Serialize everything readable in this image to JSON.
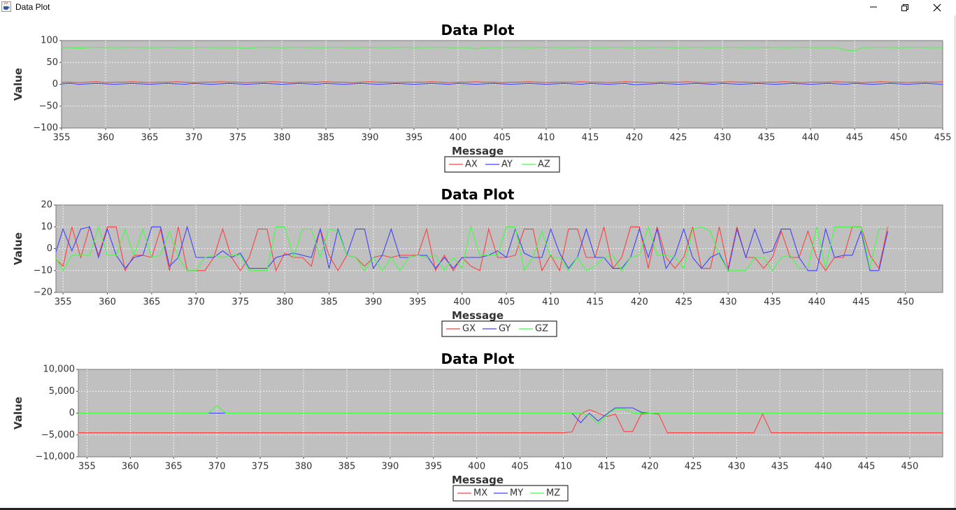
{
  "window": {
    "title": "Data Plot",
    "icon": "java-cup-icon",
    "controls": [
      "minimize-icon",
      "restore-icon",
      "close-icon"
    ]
  },
  "chart_data": [
    {
      "type": "line",
      "title": "Data Plot",
      "xlabel": "Message",
      "ylabel": "Value",
      "xlim": [
        355,
        455
      ],
      "ylim": [
        -100,
        100
      ],
      "yticks": [
        100,
        50,
        0,
        -50,
        -100
      ],
      "ytick_labels": [
        "100",
        "50",
        "0",
        "−50",
        "−100"
      ],
      "xticks": [
        355,
        360,
        365,
        370,
        375,
        380,
        385,
        390,
        395,
        400,
        405,
        410,
        415,
        420,
        425,
        430,
        435,
        440,
        445,
        450,
        455
      ],
      "grid": true,
      "plot_background": "#c0c0c0",
      "legend_position": "bottom-center",
      "series": [
        {
          "name": "AX",
          "color": "#ff4040",
          "x_start": 355,
          "x_step": 1,
          "values": [
            5,
            5,
            4,
            5,
            6,
            4,
            5,
            5,
            6,
            5,
            4,
            5,
            5,
            6,
            5,
            4,
            5,
            5,
            6,
            5,
            5,
            4,
            5,
            5,
            6,
            5,
            4,
            5,
            5,
            5,
            6,
            5,
            5,
            4,
            5,
            6,
            5,
            5,
            4,
            5,
            5,
            5,
            6,
            5,
            4,
            5,
            5,
            6,
            5,
            5,
            4,
            5,
            5,
            6,
            5,
            4,
            5,
            5,
            5,
            6,
            5,
            5,
            4,
            5,
            6,
            5,
            5,
            4,
            5,
            5,
            5,
            6,
            5,
            4,
            5,
            5,
            6,
            5,
            5,
            4,
            5,
            5,
            6,
            5,
            4,
            5,
            5,
            5,
            6,
            5,
            5,
            4,
            5,
            6,
            5,
            5,
            4,
            5,
            5,
            5,
            6
          ]
        },
        {
          "name": "AY",
          "color": "#4040ff",
          "x_start": 355,
          "x_step": 1,
          "values": [
            1,
            2,
            0,
            1,
            2,
            1,
            0,
            1,
            2,
            1,
            0,
            1,
            2,
            1,
            0,
            2,
            1,
            0,
            1,
            2,
            1,
            0,
            1,
            2,
            1,
            0,
            1,
            2,
            1,
            0,
            2,
            1,
            0,
            1,
            2,
            1,
            0,
            1,
            2,
            1,
            0,
            1,
            2,
            1,
            0,
            2,
            1,
            0,
            1,
            2,
            1,
            0,
            1,
            2,
            1,
            0,
            1,
            2,
            1,
            0,
            2,
            1,
            0,
            1,
            2,
            -1,
            0,
            1,
            2,
            1,
            0,
            1,
            2,
            1,
            0,
            2,
            1,
            0,
            1,
            2,
            1,
            0,
            1,
            2,
            1,
            0,
            1,
            2,
            1,
            0,
            2,
            1,
            0,
            1,
            2,
            1,
            0,
            1,
            2,
            1,
            0
          ]
        },
        {
          "name": "AZ",
          "color": "#40ff40",
          "x_start": 355,
          "x_step": 1,
          "values": [
            84,
            84,
            83,
            84,
            85,
            84,
            84,
            84,
            85,
            84,
            84,
            84,
            85,
            84,
            84,
            84,
            85,
            84,
            84,
            84,
            84,
            82,
            84,
            85,
            84,
            84,
            84,
            85,
            84,
            84,
            84,
            85,
            84,
            84,
            84,
            85,
            84,
            84,
            84,
            85,
            84,
            84,
            84,
            85,
            84,
            84,
            84,
            81,
            84,
            84,
            84,
            85,
            84,
            84,
            84,
            85,
            84,
            84,
            84,
            85,
            84,
            84,
            84,
            85,
            84,
            84,
            84,
            84,
            85,
            84,
            84,
            84,
            85,
            84,
            84,
            84,
            85,
            84,
            84,
            84,
            85,
            84,
            84,
            84,
            85,
            84,
            84,
            84,
            84,
            78,
            77,
            84,
            84,
            85,
            84,
            84,
            84,
            85,
            84,
            84,
            84
          ]
        }
      ]
    },
    {
      "type": "line",
      "title": "Data Plot",
      "xlabel": "Message",
      "ylabel": "Value",
      "xlim": [
        354.2,
        454.2
      ],
      "ylim": [
        -20,
        20
      ],
      "yticks": [
        20,
        10,
        0,
        -10,
        -20
      ],
      "ytick_labels": [
        "20",
        "10",
        "0",
        "−10",
        "−20"
      ],
      "xticks": [
        355,
        360,
        365,
        370,
        375,
        380,
        385,
        390,
        395,
        400,
        405,
        410,
        415,
        420,
        425,
        430,
        435,
        440,
        445,
        450
      ],
      "grid": true,
      "plot_background": "#c0c0c0",
      "legend_position": "bottom-center",
      "series": [
        {
          "name": "GX",
          "color": "#ff4040",
          "x_start": 354,
          "x_step": 1,
          "values": [
            -4,
            -8,
            10,
            -4,
            10,
            -3,
            10,
            10,
            -10,
            -3,
            -3,
            -4,
            9,
            -10,
            10,
            -10,
            -10,
            -10,
            -4,
            9,
            -4,
            -10,
            -4,
            9,
            9,
            -10,
            -2,
            -4,
            -4,
            -8,
            9,
            -3,
            -10,
            -3,
            -4,
            -8,
            -4,
            -3,
            -4,
            -3,
            -3,
            -3,
            9,
            -10,
            -3,
            -10,
            -4,
            -8,
            -10,
            9,
            -4,
            -4,
            -3,
            9,
            9,
            -10,
            -3,
            -10,
            9,
            9,
            -4,
            -4,
            10,
            -9,
            -4,
            10,
            10,
            -9,
            10,
            -4,
            -9,
            -4,
            10,
            -9,
            -9,
            10,
            -9,
            10,
            -4,
            -4,
            -9,
            -4,
            8,
            -4,
            -4,
            8,
            -4,
            -10,
            -4,
            -4,
            10,
            10,
            -3,
            -9,
            10
          ]
        },
        {
          "name": "GY",
          "color": "#4040ff",
          "x_start": 354,
          "x_step": 1,
          "values": [
            -4,
            9,
            -1,
            9,
            10,
            -4,
            9,
            -3,
            -9,
            -4,
            -3,
            10,
            10,
            -8,
            -4,
            10,
            -4,
            -4,
            -4,
            -1,
            -4,
            -2,
            -9,
            -9,
            -9,
            -4,
            -3,
            -2,
            -3,
            -4,
            9,
            -9,
            9,
            -3,
            9,
            9,
            -9,
            -3,
            9,
            -4,
            -4,
            -3,
            -3,
            -9,
            -4,
            -9,
            -4,
            -4,
            -4,
            -3,
            -1,
            -4,
            9,
            -2,
            -4,
            -4,
            9,
            -2,
            -9,
            -4,
            9,
            -4,
            -4,
            -9,
            -9,
            -4,
            9,
            -4,
            9,
            -9,
            -3,
            9,
            -4,
            -9,
            -4,
            -2,
            -10,
            9,
            -4,
            9,
            -2,
            -1,
            9,
            9,
            -4,
            -10,
            -10,
            9,
            -4,
            -3,
            -3,
            8,
            -10,
            -10,
            8
          ]
        },
        {
          "name": "GZ",
          "color": "#40ff40",
          "x_start": 354,
          "x_step": 1,
          "values": [
            -3,
            -10,
            -3,
            -3,
            -3,
            10,
            -3,
            -3,
            9,
            -3,
            9,
            -4,
            -3,
            8,
            -4,
            -10,
            -10,
            -4,
            -3,
            -4,
            -3,
            -3,
            -10,
            -10,
            -10,
            10,
            10,
            -4,
            9,
            9,
            -4,
            9,
            8,
            -3,
            -4,
            -10,
            -4,
            -10,
            -4,
            -10,
            -4,
            -3,
            -4,
            -3,
            -10,
            -4,
            -9,
            10,
            -3,
            -3,
            -3,
            10,
            10,
            -10,
            -4,
            8,
            -4,
            -4,
            -10,
            -4,
            -10,
            -8,
            -4,
            -3,
            -10,
            -4,
            -3,
            10,
            -3,
            -3,
            -4,
            -9,
            9,
            10,
            8,
            -3,
            -10,
            -10,
            -10,
            -4,
            -4,
            -10,
            -4,
            -3,
            -9,
            -9,
            10,
            -9,
            10,
            10,
            10,
            10,
            -9,
            9,
            9
          ]
        }
      ]
    },
    {
      "type": "line",
      "title": "Data Plot",
      "xlabel": "Message",
      "ylabel": "Value",
      "xlim": [
        354,
        453.8
      ],
      "ylim": [
        -10000,
        10000
      ],
      "yticks": [
        10000,
        5000,
        0,
        -5000,
        -10000
      ],
      "ytick_labels": [
        "10,000",
        "5,000",
        "0",
        "−5,000",
        "−10,000"
      ],
      "xticks": [
        355,
        360,
        365,
        370,
        375,
        380,
        385,
        390,
        395,
        400,
        405,
        410,
        415,
        420,
        425,
        430,
        435,
        440,
        445,
        450
      ],
      "grid": true,
      "plot_background": "#c0c0c0",
      "legend_position": "bottom-center",
      "series": [
        {
          "name": "MX",
          "color": "#ff4040",
          "x": [
            354,
            410,
            411,
            412,
            413,
            414,
            415,
            416,
            417,
            418,
            419,
            420,
            421,
            422,
            432,
            433,
            434,
            453.8
          ],
          "values": [
            -4500,
            -4500,
            -4300,
            -200,
            800,
            0,
            -800,
            -200,
            -4200,
            -4200,
            -200,
            0,
            -200,
            -4500,
            -4500,
            -200,
            -4500,
            -4500
          ]
        },
        {
          "name": "MY",
          "color": "#4040ff",
          "x": [
            354,
            411,
            412,
            413,
            414,
            415,
            416,
            417,
            418,
            419,
            420,
            453.8
          ],
          "values": [
            0,
            0,
            -2200,
            0,
            -1800,
            -200,
            1200,
            1200,
            1200,
            200,
            0,
            0
          ]
        },
        {
          "name": "MZ",
          "color": "#40ff40",
          "x": [
            354,
            369,
            370,
            371,
            412,
            413,
            414,
            415,
            416,
            417,
            418,
            419,
            453.8
          ],
          "values": [
            0,
            0,
            1700,
            0,
            0,
            -500,
            -2500,
            -400,
            1000,
            1000,
            0,
            0,
            0
          ]
        }
      ]
    }
  ]
}
